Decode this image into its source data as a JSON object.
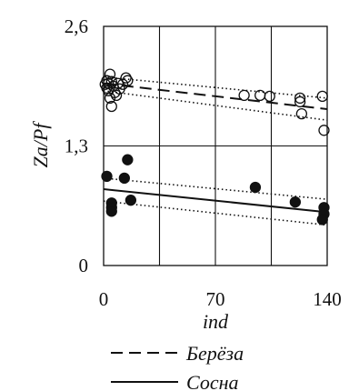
{
  "chart_data": {
    "type": "scatter",
    "xlabel": "ind",
    "ylabel": "Za/Pf",
    "xlim": [
      0,
      140
    ],
    "ylim": [
      0,
      2.6
    ],
    "xticks": [
      0,
      70,
      140
    ],
    "yticks": [
      0,
      1.3,
      2.6
    ],
    "xtick_labels": [
      "0",
      "70",
      "140"
    ],
    "ytick_labels": [
      "0",
      "1,3",
      "2,6"
    ],
    "grid": true,
    "legend_position": "bottom",
    "series": [
      {
        "name": "Берёза",
        "marker": "open-circle",
        "line_style": "dashed",
        "points": [
          [
            1,
            1.97
          ],
          [
            2,
            1.93
          ],
          [
            2,
            2.01
          ],
          [
            3,
            1.98
          ],
          [
            3,
            1.9
          ],
          [
            4,
            2.08
          ],
          [
            4,
            1.82
          ],
          [
            5,
            2.0
          ],
          [
            5,
            1.73
          ],
          [
            6,
            1.95
          ],
          [
            7,
            1.88
          ],
          [
            8,
            1.85
          ],
          [
            9,
            1.98
          ],
          [
            10,
            1.92
          ],
          [
            12,
            1.97
          ],
          [
            14,
            2.04
          ],
          [
            15,
            2.01
          ],
          [
            88,
            1.85
          ],
          [
            98,
            1.85
          ],
          [
            104,
            1.84
          ],
          [
            123,
            1.82
          ],
          [
            123,
            1.78
          ],
          [
            124,
            1.65
          ],
          [
            137,
            1.84
          ],
          [
            138,
            1.47
          ]
        ],
        "fit": {
          "x": [
            0,
            140
          ],
          "y": [
            1.98,
            1.7
          ]
        },
        "band_upper": {
          "x": [
            0,
            140
          ],
          "y": [
            2.05,
            1.82
          ]
        },
        "band_lower": {
          "x": [
            0,
            140
          ],
          "y": [
            1.9,
            1.58
          ]
        }
      },
      {
        "name": "Сосна",
        "marker": "filled-circle",
        "line_style": "solid",
        "points": [
          [
            2,
            0.97
          ],
          [
            5,
            0.68
          ],
          [
            5,
            0.63
          ],
          [
            5,
            0.59
          ],
          [
            13,
            0.95
          ],
          [
            15,
            1.15
          ],
          [
            17,
            0.71
          ],
          [
            95,
            0.85
          ],
          [
            120,
            0.69
          ],
          [
            138,
            0.63
          ],
          [
            138,
            0.56
          ],
          [
            137,
            0.5
          ]
        ],
        "fit": {
          "x": [
            0,
            140
          ],
          "y": [
            0.83,
            0.58
          ]
        },
        "band_upper": {
          "x": [
            0,
            140
          ],
          "y": [
            0.95,
            0.72
          ]
        },
        "band_lower": {
          "x": [
            0,
            140
          ],
          "y": [
            0.7,
            0.44
          ]
        }
      }
    ]
  }
}
